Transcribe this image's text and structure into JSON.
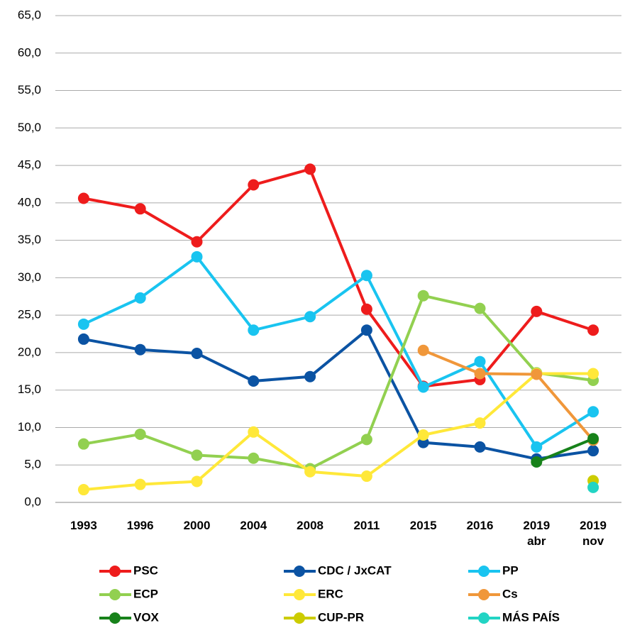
{
  "chart_data": {
    "type": "line",
    "categories": [
      "1993",
      "1996",
      "2000",
      "2004",
      "2008",
      "2011",
      "2015",
      "2016",
      "2019 abr",
      "2019 nov"
    ],
    "series": [
      {
        "name": "PSC",
        "color": "#ee1c1c",
        "values": [
          40.6,
          39.2,
          34.8,
          42.4,
          44.5,
          25.8,
          15.5,
          16.4,
          25.5,
          23.0
        ]
      },
      {
        "name": "CDC / JxCAT",
        "color": "#0b53a3",
        "values": [
          21.8,
          20.4,
          19.9,
          16.2,
          16.8,
          23.0,
          8.0,
          7.4,
          5.8,
          6.9
        ]
      },
      {
        "name": "PP",
        "color": "#19c4f0",
        "values": [
          23.8,
          27.3,
          32.8,
          23.0,
          24.8,
          30.3,
          15.4,
          18.8,
          7.4,
          12.1
        ]
      },
      {
        "name": "ECP",
        "color": "#92d050",
        "values": [
          7.8,
          9.1,
          6.3,
          5.9,
          4.5,
          8.4,
          27.6,
          25.9,
          17.3,
          16.3
        ]
      },
      {
        "name": "ERC",
        "color": "#ffe839",
        "values": [
          1.7,
          2.4,
          2.8,
          9.4,
          4.1,
          3.5,
          9.0,
          10.6,
          17.2,
          17.2
        ]
      },
      {
        "name": "Cs",
        "color": "#f0973a",
        "values": [
          null,
          null,
          null,
          null,
          null,
          null,
          20.3,
          17.2,
          17.1,
          8.3
        ]
      },
      {
        "name": "VOX",
        "color": "#17821a",
        "values": [
          null,
          null,
          null,
          null,
          null,
          null,
          null,
          null,
          5.4,
          8.5
        ]
      },
      {
        "name": "CUP-PR",
        "color": "#cccc00",
        "values": [
          null,
          null,
          null,
          null,
          null,
          null,
          null,
          null,
          null,
          2.9
        ]
      },
      {
        "name": "MÁS PAÍS",
        "color": "#22d4c4",
        "values": [
          null,
          null,
          null,
          null,
          null,
          null,
          null,
          null,
          null,
          2.0
        ]
      }
    ],
    "ylim": [
      0,
      65
    ],
    "yticks": [
      {
        "value": 0,
        "label": "0,0"
      },
      {
        "value": 5,
        "label": "5,0"
      },
      {
        "value": 10,
        "label": "10,0"
      },
      {
        "value": 15,
        "label": "15,0"
      },
      {
        "value": 20,
        "label": "20,0"
      },
      {
        "value": 25,
        "label": "25,0"
      },
      {
        "value": 30,
        "label": "30,0"
      },
      {
        "value": 35,
        "label": "35,0"
      },
      {
        "value": 40,
        "label": "40,0"
      },
      {
        "value": 45,
        "label": "45,0"
      },
      {
        "value": 50,
        "label": "50,0"
      },
      {
        "value": 55,
        "label": "55,0"
      },
      {
        "value": 60,
        "label": "60,0"
      },
      {
        "value": 65,
        "label": "65,0"
      }
    ],
    "grid": true,
    "legend": "bottom"
  }
}
